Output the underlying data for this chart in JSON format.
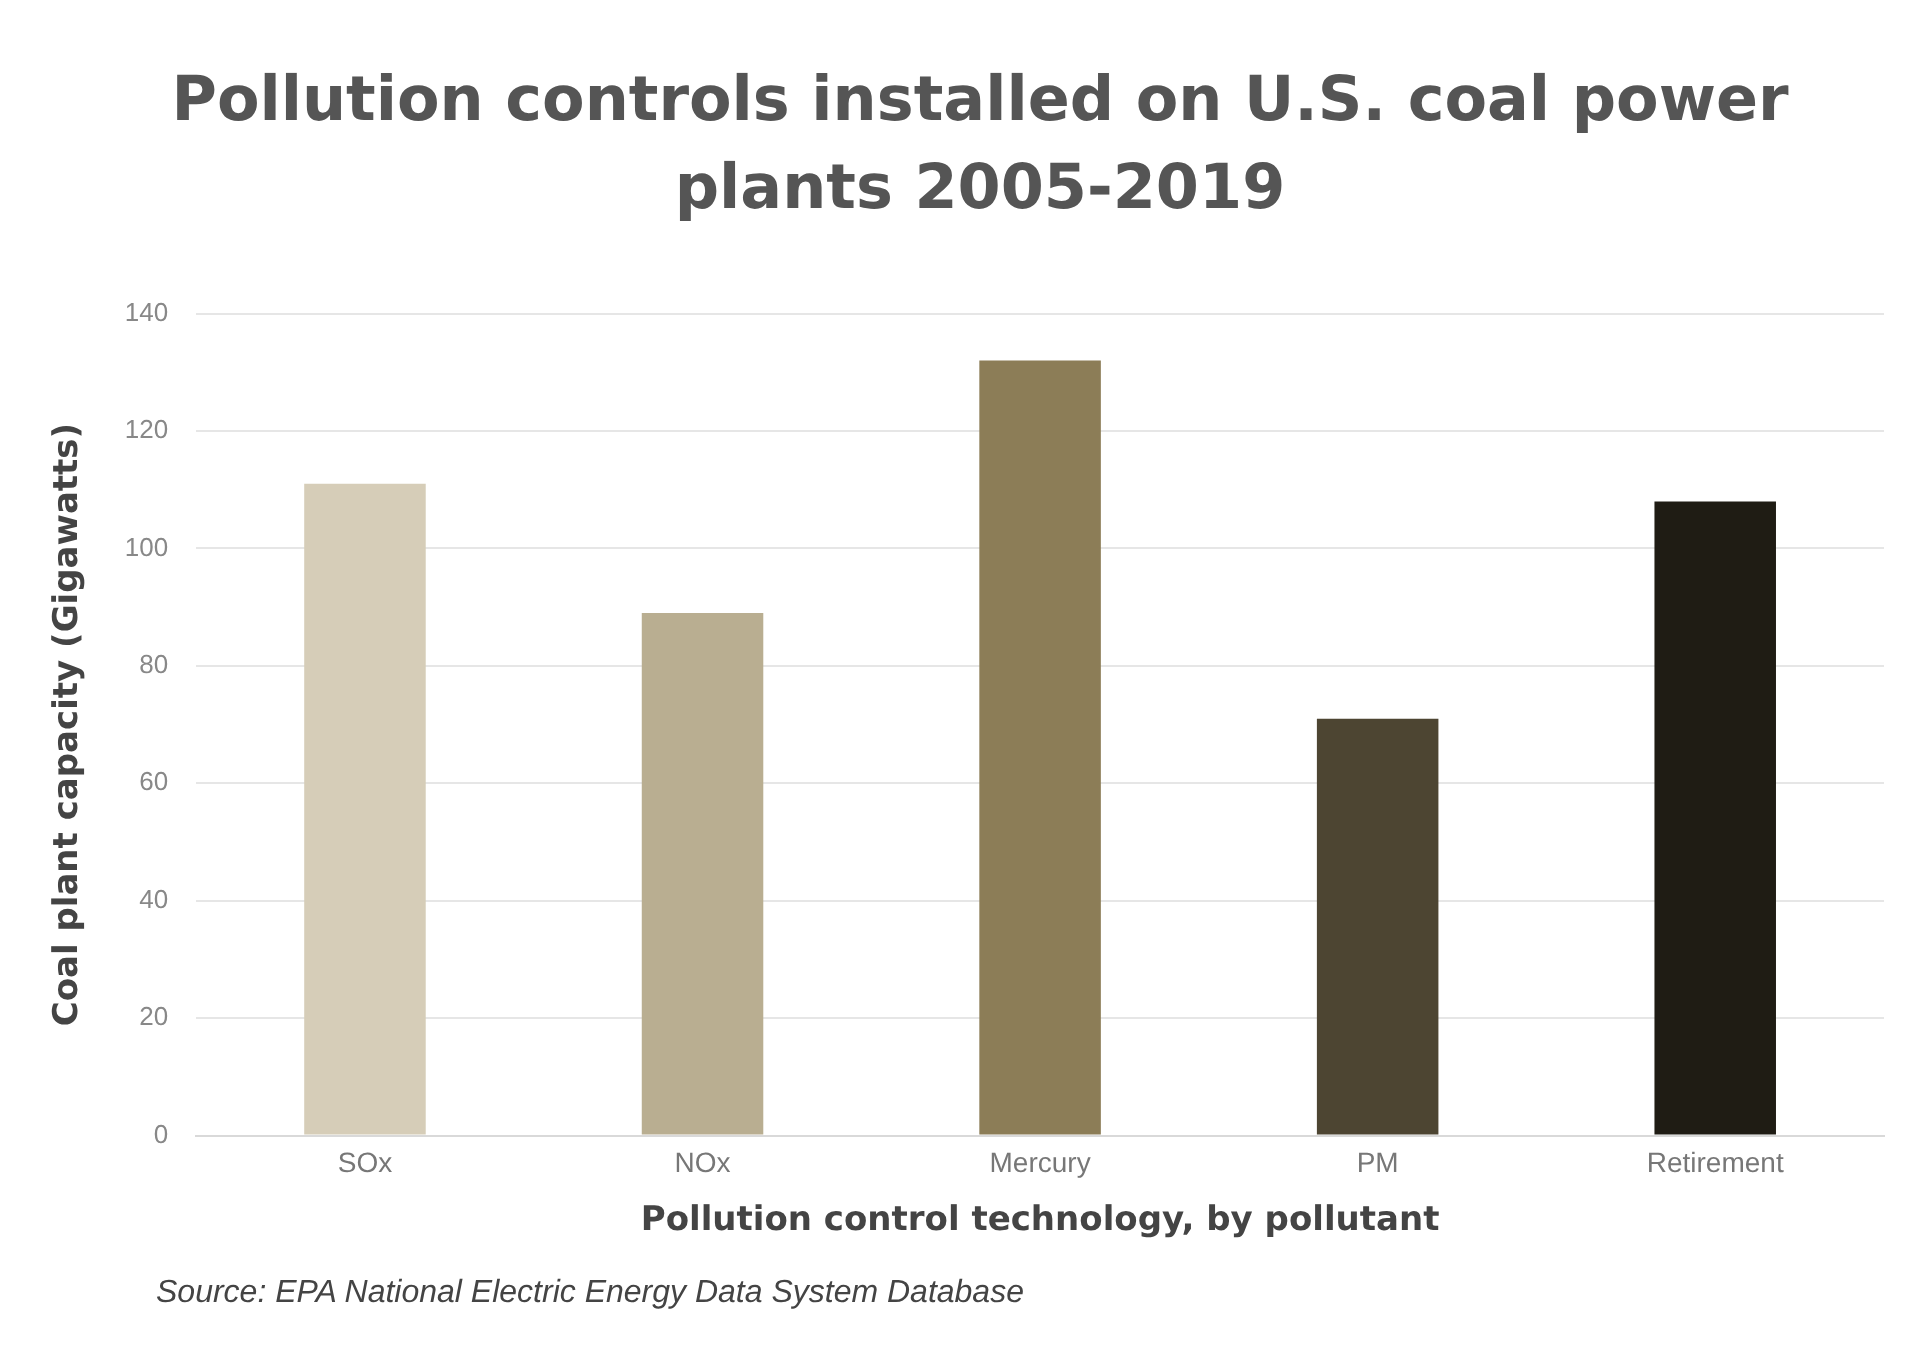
{
  "chart_data": {
    "type": "bar",
    "title": "Pollution controls installed on U.S. coal power plants 2005-2019",
    "xlabel": "Pollution control technology, by pollutant",
    "ylabel": "Coal plant capacity (Gigawatts)",
    "categories": [
      "SOx",
      "NOx",
      "Mercury",
      "PM",
      "Retirement"
    ],
    "values": [
      111,
      89,
      132,
      71,
      108
    ],
    "colors": [
      "#d6cdb8",
      "#b9ae91",
      "#8c7d57",
      "#4d4532",
      "#1f1c14"
    ],
    "ylim": [
      0,
      140
    ],
    "yticks": [
      0,
      20,
      40,
      60,
      80,
      100,
      120,
      140
    ],
    "grid": "y",
    "annotations": [
      "Source: EPA National Electric Energy Data System Database"
    ]
  }
}
